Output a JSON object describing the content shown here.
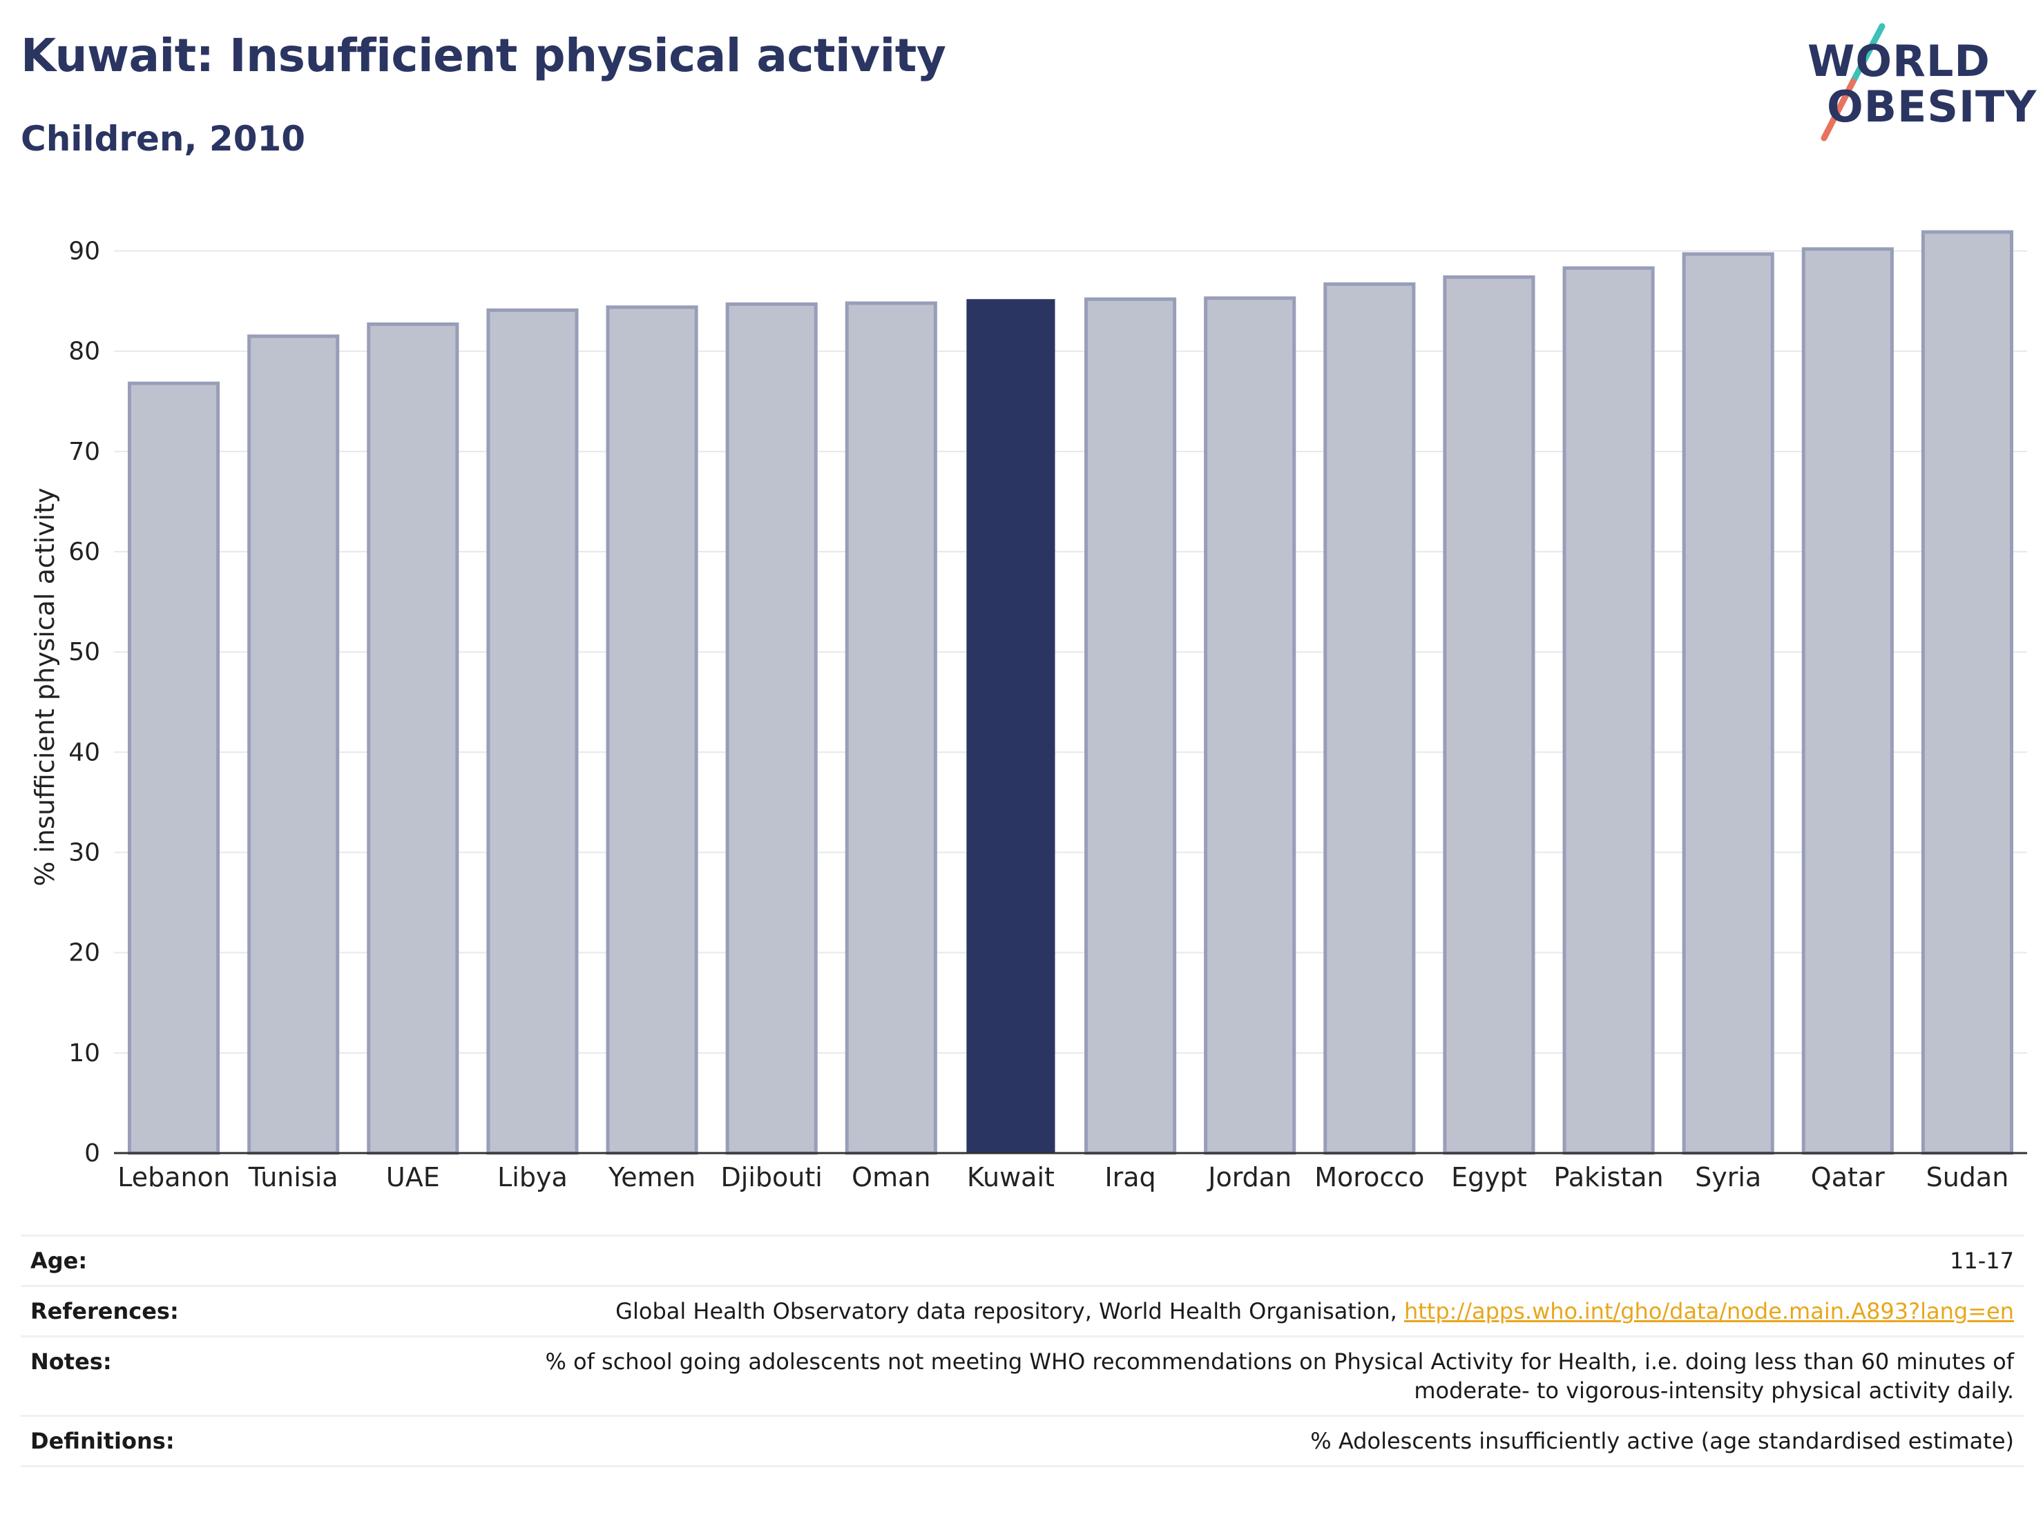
{
  "header": {
    "title": "Kuwait: Insufficient physical activity",
    "subtitle": "Children, 2010"
  },
  "logo": {
    "line1": "WORLD",
    "line2": "OBESITY",
    "line1_rest": "RLD",
    "line2_rest": "BESITY",
    "w_letter": "W",
    "o_letter": "O",
    "colors": {
      "text": "#2b3562",
      "slash_top": "#3cc0b8",
      "slash_bottom": "#e8735f"
    }
  },
  "chart_data": {
    "type": "bar",
    "title": "Kuwait: Insufficient physical activity",
    "subtitle": "Children, 2010",
    "xlabel": "",
    "ylabel": "% insufficient physical activity",
    "categories": [
      "Lebanon",
      "Tunisia",
      "UAE",
      "Libya",
      "Yemen",
      "Djibouti",
      "Oman",
      "Kuwait",
      "Iraq",
      "Jordan",
      "Morocco",
      "Egypt",
      "Pakistan",
      "Syria",
      "Qatar",
      "Sudan"
    ],
    "values": [
      76.8,
      81.5,
      82.7,
      84.1,
      84.4,
      84.7,
      84.8,
      85.2,
      85.2,
      85.3,
      86.7,
      87.4,
      88.3,
      89.7,
      90.2,
      91.9
    ],
    "highlight": "Kuwait",
    "ylim": [
      0,
      93
    ],
    "yticks": [
      0,
      10,
      20,
      30,
      40,
      50,
      60,
      70,
      80,
      90
    ],
    "grid": true,
    "colors": {
      "bar": "#bec2cf",
      "bar_border": "#989eb8",
      "highlight": "#2b3562",
      "grid": "#e7e8ee",
      "axis": "#333333"
    }
  },
  "meta": {
    "age_label": "Age:",
    "age_value": "11-17",
    "references_label": "References:",
    "references_text": "Global Health Observatory data repository, World Health Organisation, ",
    "references_link": "http://apps.who.int/gho/data/node.main.A893?lang=en",
    "notes_label": "Notes:",
    "notes_line1": "% of school going adolescents not meeting WHO recommendations on Physical Activity for Health, i.e. doing less than 60 minutes of",
    "notes_line2": "moderate- to vigorous-intensity physical activity daily.",
    "definitions_label": "Definitions:",
    "definitions_value": "% Adolescents insufficiently active (age standardised estimate)"
  }
}
